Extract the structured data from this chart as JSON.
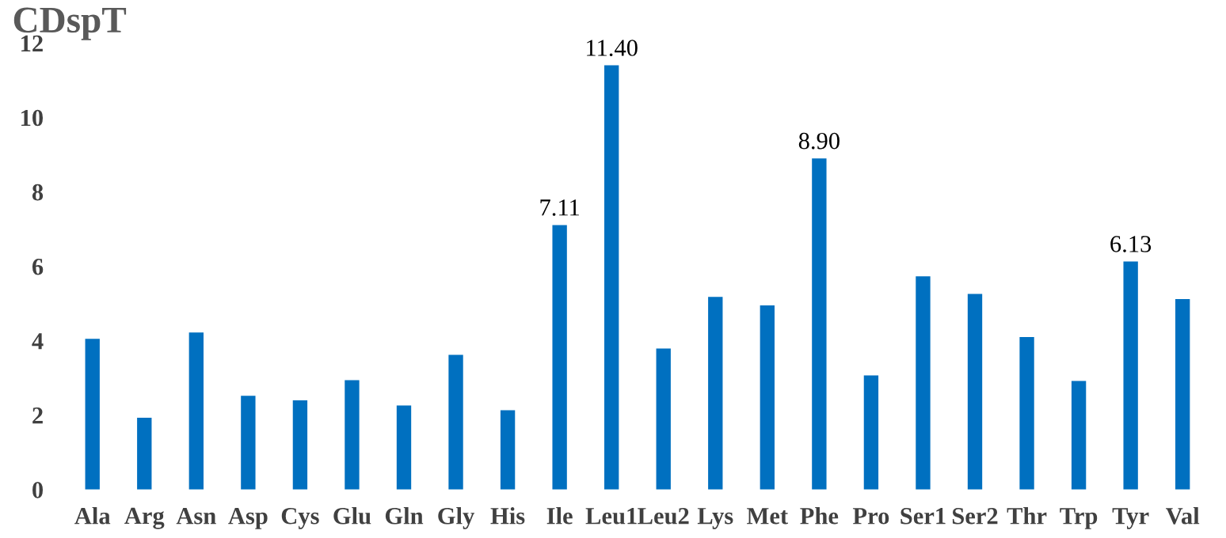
{
  "chart_data": {
    "type": "bar",
    "title": "CDspT",
    "categories": [
      "Ala",
      "Arg",
      "Asn",
      "Asp",
      "Cys",
      "Glu",
      "Gln",
      "Gly",
      "His",
      "Ile",
      "Leu1",
      "Leu2",
      "Lys",
      "Met",
      "Phe",
      "Pro",
      "Ser1",
      "Ser2",
      "Thr",
      "Trp",
      "Tyr",
      "Val"
    ],
    "values": [
      4.05,
      1.93,
      4.22,
      2.52,
      2.4,
      2.94,
      2.26,
      3.62,
      2.13,
      7.11,
      11.4,
      3.79,
      5.18,
      4.95,
      8.9,
      3.07,
      5.73,
      5.26,
      4.1,
      2.92,
      6.13,
      5.12
    ],
    "value_labels": [
      null,
      null,
      null,
      null,
      null,
      null,
      null,
      null,
      null,
      "7.11",
      "11.40",
      null,
      null,
      null,
      "8.90",
      null,
      null,
      null,
      null,
      null,
      "6.13",
      null
    ],
    "color": "#0070c0",
    "ylim": [
      0,
      12
    ],
    "yticks": [
      0,
      2,
      4,
      6,
      8,
      10,
      12
    ],
    "grid": false
  }
}
